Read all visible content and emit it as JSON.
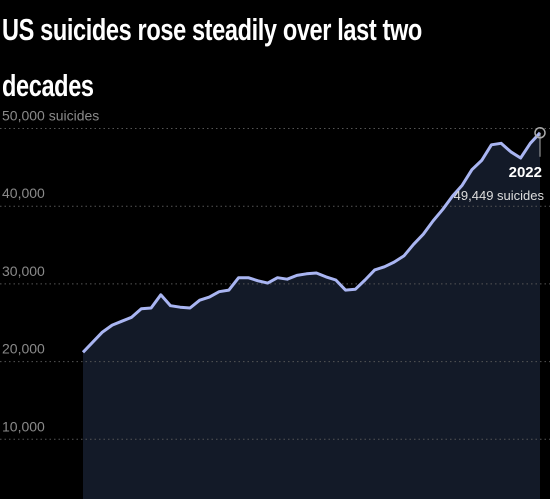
{
  "chart_data": {
    "type": "area",
    "title": "US suicides rose steadily over last two decades",
    "categories": [
      null,
      null,
      null,
      null,
      null,
      null,
      null,
      null,
      null,
      null,
      null,
      null,
      null,
      null,
      null,
      null,
      null,
      null,
      null,
      null,
      null,
      null,
      null,
      null,
      null,
      null,
      null,
      null,
      null,
      null,
      null,
      null,
      null,
      null,
      null,
      null,
      null,
      null,
      null,
      null,
      null,
      null,
      null,
      null,
      null,
      null,
      null,
      "2022"
    ],
    "values": [
      21200,
      22500,
      23800,
      24700,
      25200,
      25700,
      26800,
      26900,
      28600,
      27200,
      27000,
      26900,
      27900,
      28300,
      29000,
      29200,
      30800,
      30800,
      30400,
      30100,
      30800,
      30600,
      31100,
      31300,
      31400,
      30900,
      30500,
      29200,
      29300,
      30500,
      31800,
      32200,
      32800,
      33600,
      35100,
      36400,
      38100,
      39600,
      41300,
      42700,
      44700,
      45900,
      47900,
      48100,
      47000,
      46200,
      48100,
      49449
    ],
    "value_labels": [
      null,
      null,
      null,
      null,
      null,
      null,
      null,
      null,
      null,
      null,
      null,
      null,
      null,
      null,
      null,
      null,
      null,
      null,
      null,
      null,
      null,
      null,
      null,
      null,
      null,
      null,
      null,
      null,
      null,
      null,
      null,
      null,
      null,
      null,
      null,
      null,
      null,
      null,
      null,
      null,
      null,
      null,
      null,
      null,
      null,
      null,
      null,
      "49,449 suicides"
    ],
    "color": "#a9b5f2",
    "area_color": "#131a28",
    "ylim": [
      0,
      52000
    ],
    "yticks": [
      {
        "value": 10000,
        "label": "10,000"
      },
      {
        "value": 20000,
        "label": "20,000"
      },
      {
        "value": 30000,
        "label": "30,000"
      },
      {
        "value": 40000,
        "label": "40,000"
      },
      {
        "value": 50000,
        "label": "50,000 suicides"
      }
    ],
    "grid": true
  }
}
